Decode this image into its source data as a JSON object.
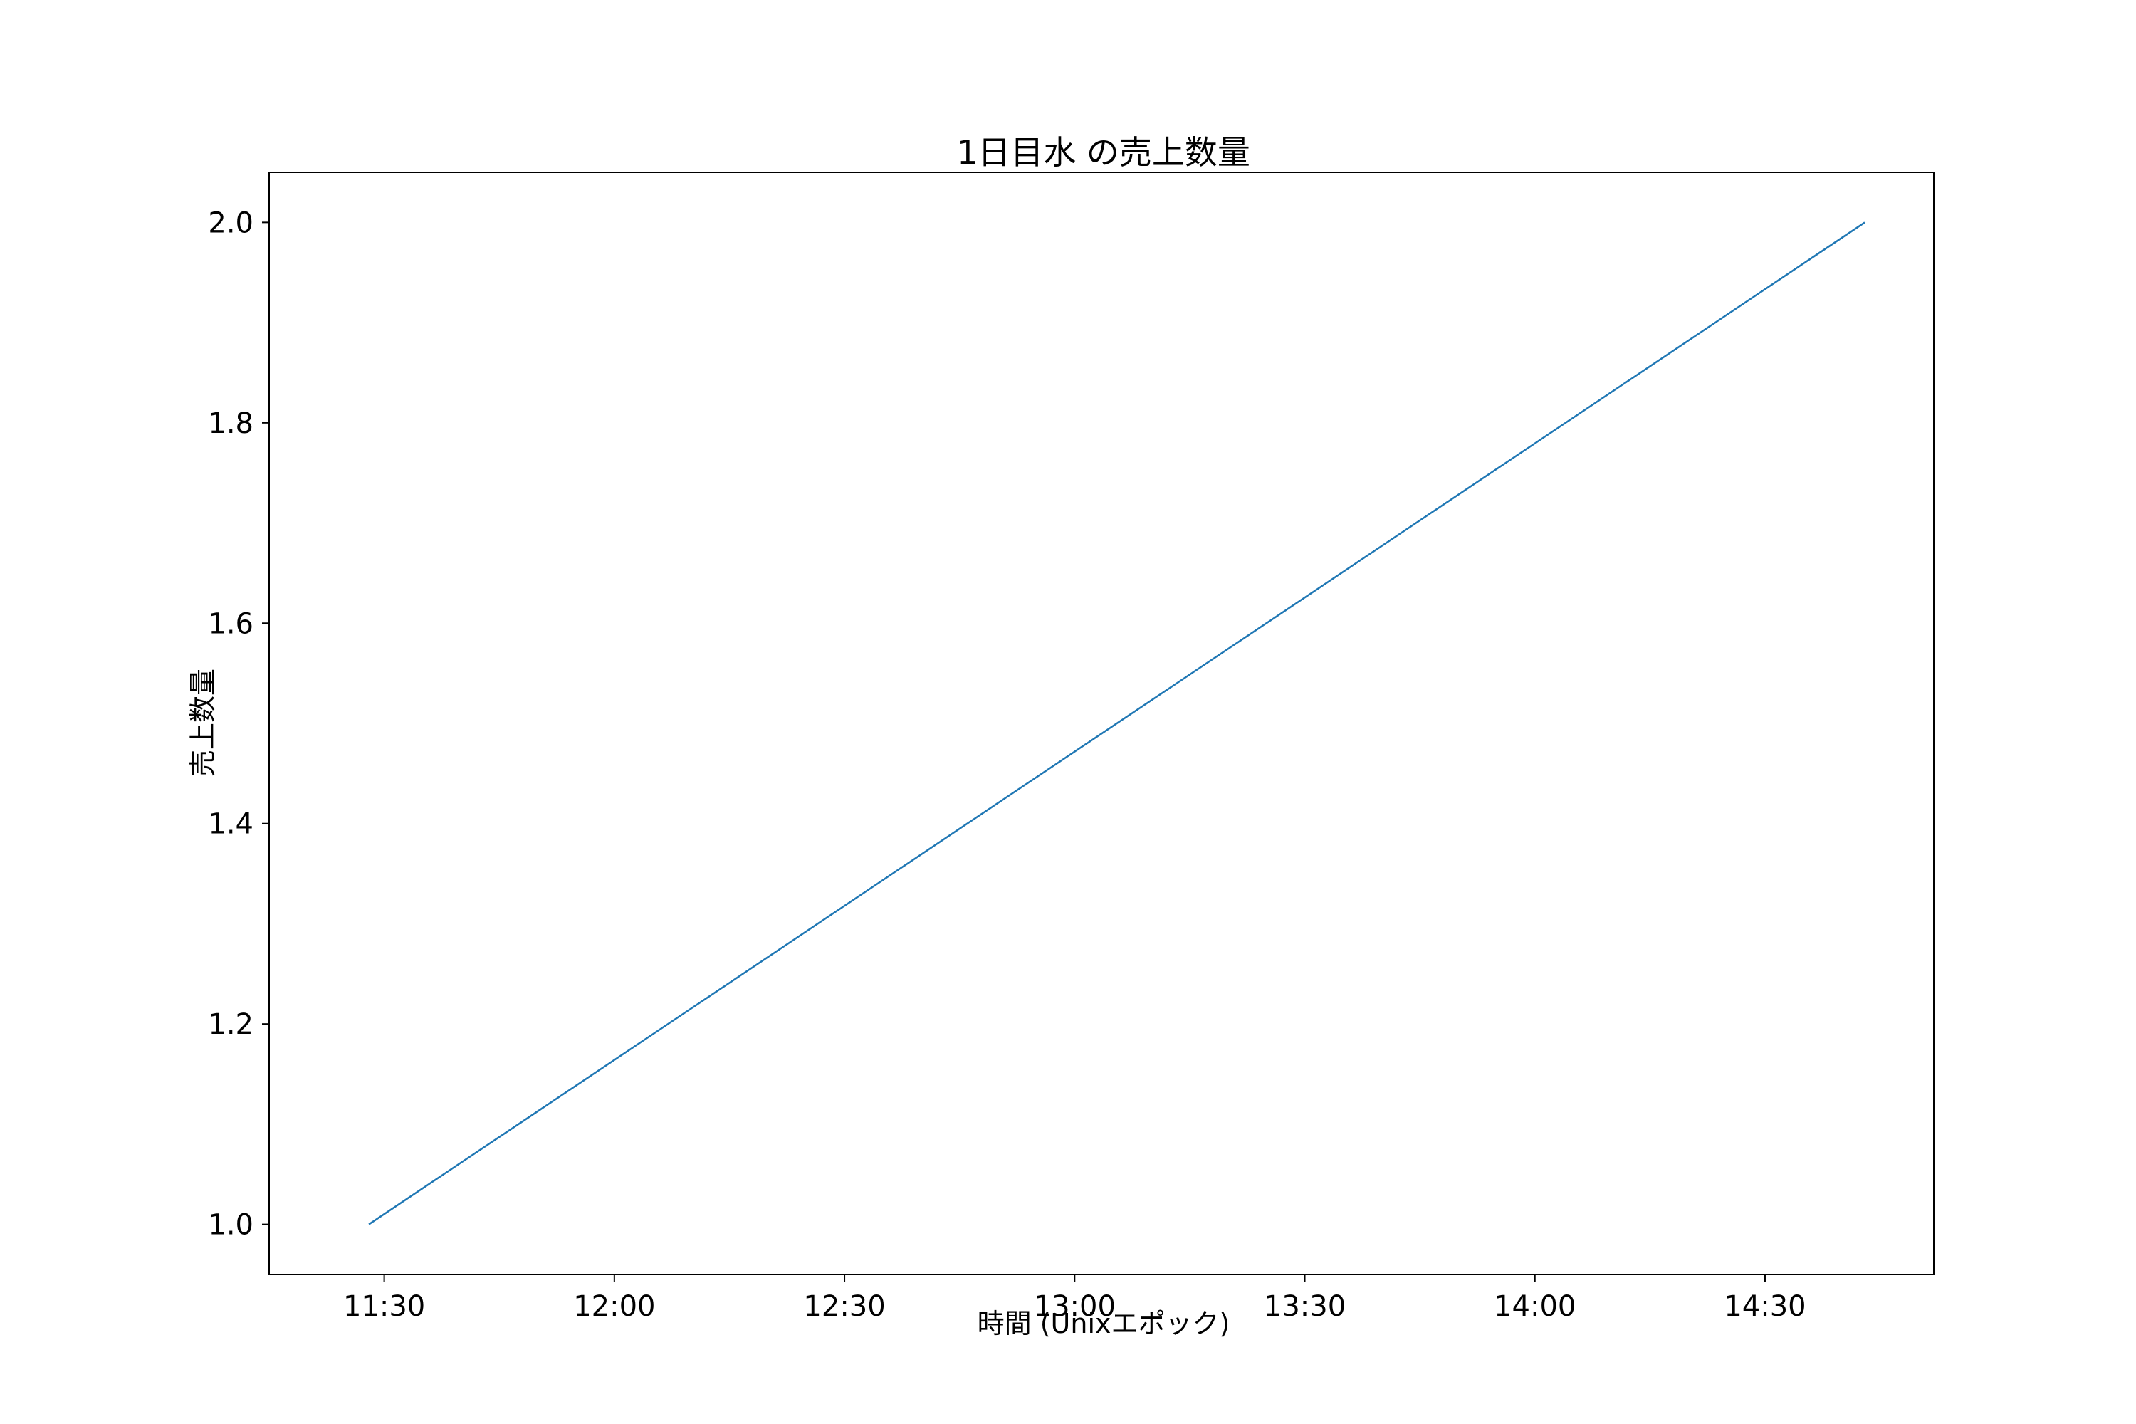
{
  "chart_data": {
    "type": "line",
    "title": "1日目水 の売上数量",
    "xlabel": "時間 (Unixエポック)",
    "ylabel": "売上数量",
    "x_ticks": [
      "11:30",
      "12:00",
      "12:30",
      "13:00",
      "13:30",
      "14:00",
      "14:30"
    ],
    "y_ticks": [
      "1.0",
      "1.2",
      "1.4",
      "1.6",
      "1.8",
      "2.0"
    ],
    "xlim": [
      "11:15",
      "14:52"
    ],
    "ylim": [
      0.95,
      2.05
    ],
    "grid": false,
    "series": [
      {
        "x": [
          "11:28",
          "14:43"
        ],
        "y": [
          1.0,
          2.0
        ]
      }
    ]
  },
  "colors": {
    "line": "#1f77b4",
    "axes": "#000000",
    "background": "#ffffff"
  }
}
